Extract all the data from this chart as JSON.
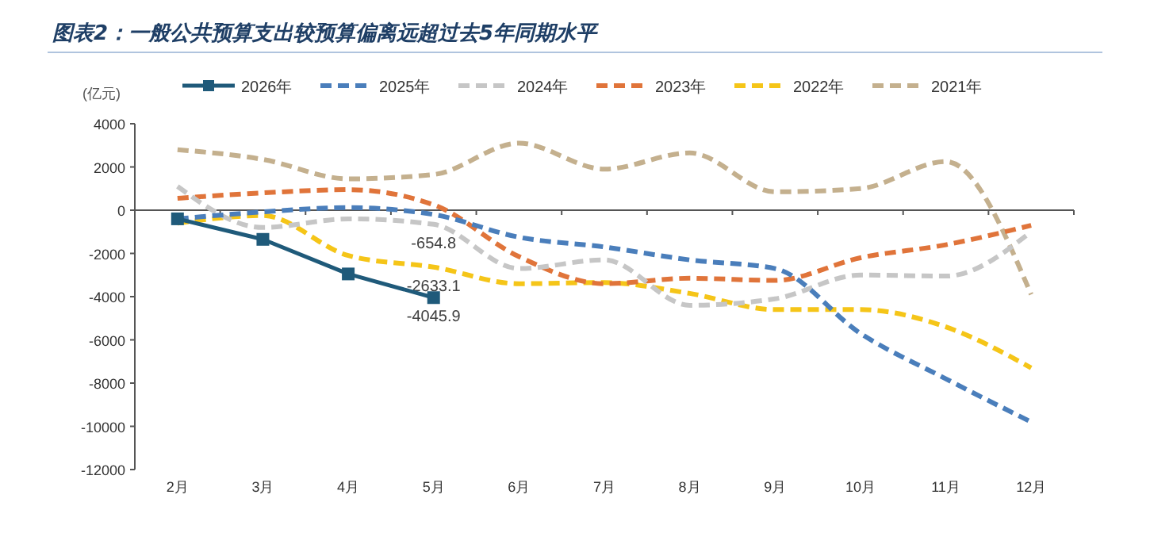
{
  "chart_data": {
    "type": "line",
    "title": "图表2：一般公共预算支出较预算偏离远超过去5年同期水平",
    "ylabel": "(亿元)",
    "categories": [
      "2月",
      "3月",
      "4月",
      "5月",
      "6月",
      "7月",
      "8月",
      "9月",
      "10月",
      "11月",
      "12月"
    ],
    "ylim": [
      -12000,
      4000
    ],
    "yticks": [
      -12000,
      -10000,
      -8000,
      -6000,
      -4000,
      -2000,
      0,
      2000,
      4000
    ],
    "legend": "top",
    "series": [
      {
        "name": "2026年",
        "color": "#1f5a7a",
        "marker": "square",
        "line_style": "solid",
        "values": [
          -400,
          -1350,
          -2950,
          -4045.9,
          null,
          null,
          null,
          null,
          null,
          null,
          null
        ],
        "value_labels": [
          null,
          null,
          null,
          "-4045.9",
          null,
          null,
          null,
          null,
          null,
          null,
          null
        ]
      },
      {
        "name": "2025年",
        "color": "#4a7ebb",
        "marker": "none",
        "line_style": "dashed",
        "values": [
          -400,
          -80,
          120,
          -200,
          -1250,
          -1700,
          -2300,
          -2700,
          -5700,
          -7800,
          -9800
        ]
      },
      {
        "name": "2024年",
        "color": "#c6c6c6",
        "marker": "none",
        "line_style": "dashed",
        "values": [
          1100,
          -800,
          -400,
          -654.8,
          -2700,
          -2300,
          -4400,
          -4100,
          -3000,
          -3050,
          -1000
        ],
        "value_labels": [
          null,
          null,
          null,
          "-654.8",
          null,
          null,
          null,
          null,
          null,
          null,
          null
        ]
      },
      {
        "name": "2023年",
        "color": "#e0743a",
        "marker": "none",
        "line_style": "dashed",
        "values": [
          550,
          800,
          950,
          250,
          -2150,
          -3400,
          -3150,
          -3250,
          -2200,
          -1600,
          -700
        ]
      },
      {
        "name": "2022年",
        "color": "#f5c518",
        "marker": "none",
        "line_style": "dashed",
        "values": [
          -600,
          -250,
          -2100,
          -2633.1,
          -3400,
          -3350,
          -3850,
          -4600,
          -4600,
          -5400,
          -7300
        ],
        "value_labels": [
          null,
          null,
          null,
          "-2633.1",
          null,
          null,
          null,
          null,
          null,
          null,
          null
        ]
      },
      {
        "name": "2021年",
        "color": "#c4b08e",
        "marker": "none",
        "line_style": "dashed",
        "values": [
          2800,
          2350,
          1450,
          1650,
          3100,
          1900,
          2650,
          850,
          1000,
          2250,
          -3900
        ]
      }
    ]
  }
}
